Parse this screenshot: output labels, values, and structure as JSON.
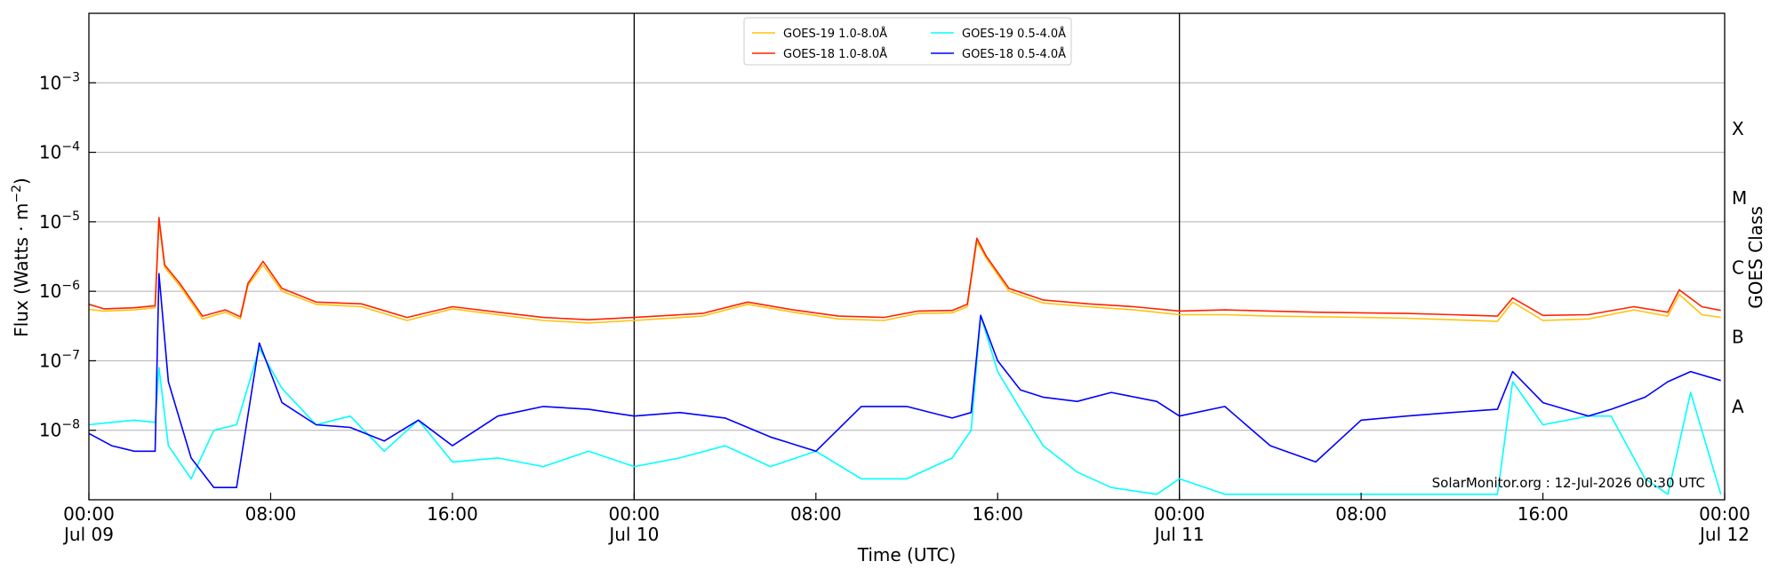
{
  "chart_data": {
    "type": "line",
    "title": "",
    "xlabel": "Time (UTC)",
    "ylabel_left": "Flux (Watts · m",
    "ylabel_left_sup": "−2",
    "ylabel_left_close": ")",
    "ylabel_right": "GOES Class",
    "yscale": "log",
    "ylim": [
      1e-09,
      0.01
    ],
    "xlim": [
      "2026-07-09T00:00",
      "2026-07-12T00:00"
    ],
    "y_ticks": [
      {
        "value": 1e-08,
        "base": "10",
        "exp": "−8"
      },
      {
        "value": 1e-07,
        "base": "10",
        "exp": "−7"
      },
      {
        "value": 1e-06,
        "base": "10",
        "exp": "−6"
      },
      {
        "value": 1e-05,
        "base": "10",
        "exp": "−5"
      },
      {
        "value": 0.0001,
        "base": "10",
        "exp": "−4"
      },
      {
        "value": 0.001,
        "base": "10",
        "exp": "−3"
      }
    ],
    "x_ticks": [
      {
        "time": "2026-07-09T00:00",
        "line1": "00:00",
        "line2": "Jul 09"
      },
      {
        "time": "2026-07-09T08:00",
        "line1": "08:00",
        "line2": ""
      },
      {
        "time": "2026-07-09T16:00",
        "line1": "16:00",
        "line2": ""
      },
      {
        "time": "2026-07-10T00:00",
        "line1": "00:00",
        "line2": "Jul 10"
      },
      {
        "time": "2026-07-10T08:00",
        "line1": "08:00",
        "line2": ""
      },
      {
        "time": "2026-07-10T16:00",
        "line1": "16:00",
        "line2": ""
      },
      {
        "time": "2026-07-11T00:00",
        "line1": "00:00",
        "line2": "Jul 11"
      },
      {
        "time": "2026-07-11T08:00",
        "line1": "08:00",
        "line2": ""
      },
      {
        "time": "2026-07-11T16:00",
        "line1": "16:00",
        "line2": ""
      },
      {
        "time": "2026-07-12T00:00",
        "line1": "00:00",
        "line2": "Jul 12"
      }
    ],
    "day_separators": [
      "2026-07-10T00:00",
      "2026-07-11T00:00"
    ],
    "goes_classes": [
      {
        "label": "A",
        "value": 1e-08
      },
      {
        "label": "B",
        "value": 1e-07
      },
      {
        "label": "C",
        "value": 1e-06
      },
      {
        "label": "M",
        "value": 1e-05
      },
      {
        "label": "X",
        "value": 0.0001
      }
    ],
    "grid": "horizontal at decades",
    "legend_position": "top-center",
    "legend": [
      {
        "name": "GOES-19 1.0-8.0Å",
        "color": "#ffc20e"
      },
      {
        "name": "GOES-18 1.0-8.0Å",
        "color": "#ff2200"
      },
      {
        "name": "GOES-19 0.5-4.0Å",
        "color": "#00ffff"
      },
      {
        "name": "GOES-18 0.5-4.0Å",
        "color": "#0000ff"
      }
    ],
    "credit": "SolarMonitor.org : 12-Jul-2026 00:30 UTC",
    "series": [
      {
        "name": "GOES-19 1.0-8.0Å",
        "color": "#ffc20e",
        "times": [
          "2026-07-09T00:00",
          "2026-07-09T00:40",
          "2026-07-09T02:00",
          "2026-07-09T02:55",
          "2026-07-09T03:05",
          "2026-07-09T03:20",
          "2026-07-09T04:00",
          "2026-07-09T05:00",
          "2026-07-09T06:00",
          "2026-07-09T06:40",
          "2026-07-09T07:00",
          "2026-07-09T07:40",
          "2026-07-09T08:30",
          "2026-07-09T10:00",
          "2026-07-09T12:00",
          "2026-07-09T14:00",
          "2026-07-09T16:00",
          "2026-07-09T18:00",
          "2026-07-09T20:00",
          "2026-07-09T22:00",
          "2026-07-10T00:00",
          "2026-07-10T03:00",
          "2026-07-10T05:00",
          "2026-07-10T07:00",
          "2026-07-10T09:00",
          "2026-07-10T11:00",
          "2026-07-10T12:30",
          "2026-07-10T14:00",
          "2026-07-10T14:40",
          "2026-07-10T15:05",
          "2026-07-10T15:30",
          "2026-07-10T16:30",
          "2026-07-10T18:00",
          "2026-07-10T20:00",
          "2026-07-10T22:00",
          "2026-07-11T00:00",
          "2026-07-11T02:00",
          "2026-07-11T04:00",
          "2026-07-11T06:00",
          "2026-07-11T08:00",
          "2026-07-11T10:00",
          "2026-07-11T12:00",
          "2026-07-11T14:00",
          "2026-07-11T14:40",
          "2026-07-11T16:00",
          "2026-07-11T18:00",
          "2026-07-11T20:00",
          "2026-07-11T21:30",
          "2026-07-11T22:00",
          "2026-07-11T23:00",
          "2026-07-11T23:50"
        ],
        "values": [
          5.5e-07,
          5.2e-07,
          5.4e-07,
          5.8e-07,
          1e-05,
          2.2e-06,
          1.2e-06,
          4e-07,
          5e-07,
          4e-07,
          1.2e-06,
          2.4e-06,
          1e-06,
          6.5e-07,
          6e-07,
          3.8e-07,
          5.6e-07,
          4.6e-07,
          3.8e-07,
          3.5e-07,
          3.8e-07,
          4.4e-07,
          6.5e-07,
          5e-07,
          4e-07,
          3.8e-07,
          4.8e-07,
          4.9e-07,
          6e-07,
          5.2e-06,
          3e-06,
          1e-06,
          6.8e-07,
          6e-07,
          5.4e-07,
          4.6e-07,
          4.6e-07,
          4.4e-07,
          4.3e-07,
          4.2e-07,
          4.1e-07,
          3.9e-07,
          3.7e-07,
          7e-07,
          3.8e-07,
          4e-07,
          5.4e-07,
          4.4e-07,
          9e-07,
          4.6e-07,
          4.2e-07
        ]
      },
      {
        "name": "GOES-18 1.0-8.0Å",
        "color": "#ff2200",
        "times": [
          "2026-07-09T00:00",
          "2026-07-09T00:40",
          "2026-07-09T02:00",
          "2026-07-09T02:55",
          "2026-07-09T03:05",
          "2026-07-09T03:20",
          "2026-07-09T04:00",
          "2026-07-09T05:00",
          "2026-07-09T06:00",
          "2026-07-09T06:40",
          "2026-07-09T07:00",
          "2026-07-09T07:40",
          "2026-07-09T08:30",
          "2026-07-09T10:00",
          "2026-07-09T12:00",
          "2026-07-09T14:00",
          "2026-07-09T16:00",
          "2026-07-09T18:00",
          "2026-07-09T20:00",
          "2026-07-09T22:00",
          "2026-07-10T00:00",
          "2026-07-10T03:00",
          "2026-07-10T05:00",
          "2026-07-10T07:00",
          "2026-07-10T09:00",
          "2026-07-10T11:00",
          "2026-07-10T12:30",
          "2026-07-10T14:00",
          "2026-07-10T14:40",
          "2026-07-10T15:05",
          "2026-07-10T15:30",
          "2026-07-10T16:30",
          "2026-07-10T18:00",
          "2026-07-10T20:00",
          "2026-07-10T22:00",
          "2026-07-11T00:00",
          "2026-07-11T02:00",
          "2026-07-11T04:00",
          "2026-07-11T06:00",
          "2026-07-11T08:00",
          "2026-07-11T10:00",
          "2026-07-11T12:00",
          "2026-07-11T14:00",
          "2026-07-11T14:40",
          "2026-07-11T16:00",
          "2026-07-11T18:00",
          "2026-07-11T20:00",
          "2026-07-11T21:30",
          "2026-07-11T22:00",
          "2026-07-11T23:00",
          "2026-07-11T23:50"
        ],
        "values": [
          6.5e-07,
          5.6e-07,
          5.8e-07,
          6.2e-07,
          1.15e-05,
          2.4e-06,
          1.3e-06,
          4.4e-07,
          5.4e-07,
          4.3e-07,
          1.3e-06,
          2.7e-06,
          1.1e-06,
          7e-07,
          6.6e-07,
          4.2e-07,
          6e-07,
          5e-07,
          4.2e-07,
          3.9e-07,
          4.2e-07,
          4.8e-07,
          7e-07,
          5.4e-07,
          4.4e-07,
          4.2e-07,
          5.2e-07,
          5.3e-07,
          6.5e-07,
          5.8e-06,
          3.2e-06,
          1.1e-06,
          7.5e-07,
          6.6e-07,
          6e-07,
          5.2e-07,
          5.4e-07,
          5.2e-07,
          5e-07,
          4.9e-07,
          4.8e-07,
          4.6e-07,
          4.4e-07,
          8e-07,
          4.5e-07,
          4.6e-07,
          6e-07,
          5e-07,
          1.05e-06,
          6e-07,
          5.3e-07
        ]
      },
      {
        "name": "GOES-19 0.5-4.0Å",
        "color": "#00ffff",
        "times": [
          "2026-07-09T00:00",
          "2026-07-09T01:00",
          "2026-07-09T02:00",
          "2026-07-09T02:55",
          "2026-07-09T03:05",
          "2026-07-09T03:30",
          "2026-07-09T04:30",
          "2026-07-09T05:30",
          "2026-07-09T06:30",
          "2026-07-09T07:30",
          "2026-07-09T08:30",
          "2026-07-09T10:00",
          "2026-07-09T11:30",
          "2026-07-09T13:00",
          "2026-07-09T14:30",
          "2026-07-09T16:00",
          "2026-07-09T18:00",
          "2026-07-09T20:00",
          "2026-07-09T22:00",
          "2026-07-10T00:00",
          "2026-07-10T02:00",
          "2026-07-10T04:00",
          "2026-07-10T06:00",
          "2026-07-10T08:00",
          "2026-07-10T10:00",
          "2026-07-10T12:00",
          "2026-07-10T14:00",
          "2026-07-10T14:50",
          "2026-07-10T15:15",
          "2026-07-10T16:00",
          "2026-07-10T17:00",
          "2026-07-10T18:00",
          "2026-07-10T19:30",
          "2026-07-10T21:00",
          "2026-07-10T23:00",
          "2026-07-11T00:00",
          "2026-07-11T02:00",
          "2026-07-11T04:00",
          "2026-07-11T06:00",
          "2026-07-11T08:00",
          "2026-07-11T10:00",
          "2026-07-11T12:00",
          "2026-07-11T14:00",
          "2026-07-11T14:40",
          "2026-07-11T16:00",
          "2026-07-11T18:00",
          "2026-07-11T19:00",
          "2026-07-11T20:30",
          "2026-07-11T21:30",
          "2026-07-11T22:30",
          "2026-07-11T23:50"
        ],
        "values": [
          1.2e-08,
          1.3e-08,
          1.4e-08,
          1.3e-08,
          8e-08,
          6e-09,
          2e-09,
          1e-08,
          1.2e-08,
          1.5e-07,
          4e-08,
          1.2e-08,
          1.6e-08,
          5e-09,
          1.4e-08,
          3.5e-09,
          4e-09,
          3e-09,
          5e-09,
          3e-09,
          4e-09,
          6e-09,
          3e-09,
          5e-09,
          2e-09,
          2e-09,
          4e-09,
          1e-08,
          4.5e-07,
          7e-08,
          2e-08,
          6e-09,
          2.5e-09,
          1.5e-09,
          1.2e-09,
          2e-09,
          1.2e-09,
          1.2e-09,
          1.2e-09,
          1.2e-09,
          1.2e-09,
          1.2e-09,
          1.2e-09,
          5e-08,
          1.2e-08,
          1.6e-08,
          1.6e-08,
          2e-09,
          1.2e-09,
          3.5e-08,
          1.2e-09
        ]
      },
      {
        "name": "GOES-18 0.5-4.0Å",
        "color": "#0000ff",
        "times": [
          "2026-07-09T00:00",
          "2026-07-09T01:00",
          "2026-07-09T02:00",
          "2026-07-09T02:55",
          "2026-07-09T03:05",
          "2026-07-09T03:30",
          "2026-07-09T04:30",
          "2026-07-09T05:30",
          "2026-07-09T06:30",
          "2026-07-09T07:30",
          "2026-07-09T08:30",
          "2026-07-09T10:00",
          "2026-07-09T11:30",
          "2026-07-09T13:00",
          "2026-07-09T14:30",
          "2026-07-09T16:00",
          "2026-07-09T18:00",
          "2026-07-09T20:00",
          "2026-07-09T22:00",
          "2026-07-10T00:00",
          "2026-07-10T02:00",
          "2026-07-10T04:00",
          "2026-07-10T06:00",
          "2026-07-10T08:00",
          "2026-07-10T10:00",
          "2026-07-10T12:00",
          "2026-07-10T14:00",
          "2026-07-10T14:50",
          "2026-07-10T15:15",
          "2026-07-10T16:00",
          "2026-07-10T17:00",
          "2026-07-10T18:00",
          "2026-07-10T19:30",
          "2026-07-10T21:00",
          "2026-07-10T23:00",
          "2026-07-11T00:00",
          "2026-07-11T02:00",
          "2026-07-11T04:00",
          "2026-07-11T06:00",
          "2026-07-11T08:00",
          "2026-07-11T10:00",
          "2026-07-11T12:00",
          "2026-07-11T14:00",
          "2026-07-11T14:40",
          "2026-07-11T16:00",
          "2026-07-11T18:00",
          "2026-07-11T19:00",
          "2026-07-11T20:30",
          "2026-07-11T21:30",
          "2026-07-11T22:30",
          "2026-07-11T23:50"
        ],
        "values": [
          9e-09,
          6e-09,
          5e-09,
          5e-09,
          1.8e-06,
          5e-08,
          4e-09,
          1.5e-09,
          1.5e-09,
          1.8e-07,
          2.5e-08,
          1.2e-08,
          1.1e-08,
          7e-09,
          1.4e-08,
          6e-09,
          1.6e-08,
          2.2e-08,
          2e-08,
          1.6e-08,
          1.8e-08,
          1.5e-08,
          8e-09,
          5e-09,
          2.2e-08,
          2.2e-08,
          1.5e-08,
          1.8e-08,
          4.5e-07,
          1e-07,
          3.8e-08,
          3e-08,
          2.6e-08,
          3.5e-08,
          2.6e-08,
          1.6e-08,
          2.2e-08,
          6e-09,
          3.5e-09,
          1.4e-08,
          1.6e-08,
          1.8e-08,
          2e-08,
          7e-08,
          2.5e-08,
          1.6e-08,
          2e-08,
          3e-08,
          5e-08,
          7e-08,
          5.2e-08
        ]
      }
    ]
  }
}
